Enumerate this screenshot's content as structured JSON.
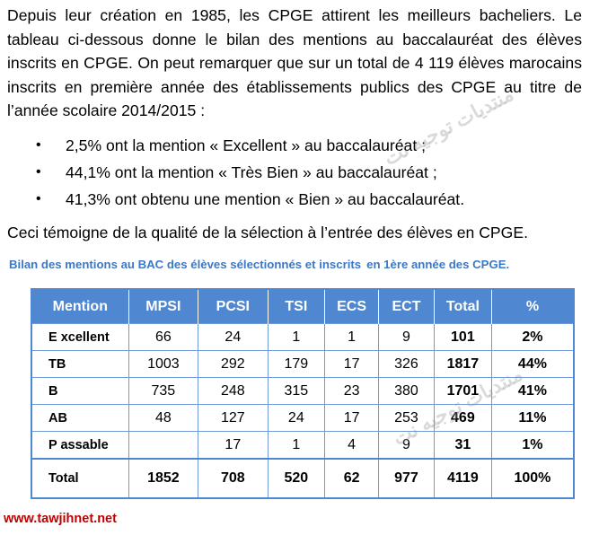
{
  "intro": "Depuis leur création en 1985, les CPGE attirent les meilleurs bacheliers. Le tableau ci-dessous donne le bilan des mentions au baccalauréat des élèves inscrits en CPGE. On peut remarquer que sur un total de 4 119 élèves marocains inscrits en première année des établissements publics des CPGE au titre de l’année scolaire 2014/2015 :",
  "bullets": [
    "2,5% ont la mention « Excellent » au baccalauréat ;",
    "44,1% ont la mention « Très Bien » au baccalauréat ;",
    "41,3% ont obtenu une mention « Bien » au baccalauréat."
  ],
  "bullet_symbol": "•",
  "conclusion": "Ceci témoigne de la qualité de la sélection à l’entrée des élèves en CPGE.",
  "caption_part1": "Bilan des mentions au BAC des élèves sélectionnés et inscrits",
  "caption_part2": "en 1ère année des CPGE.",
  "table": {
    "headers": [
      "Mention",
      "MPSI",
      "PCSI",
      "TSI",
      "ECS",
      "ECT",
      "Total",
      "%"
    ],
    "rows": [
      {
        "label": "E xcellent",
        "mpsi": "66",
        "pcsi": "24",
        "tsi": "1",
        "ecs": "1",
        "ect": "9",
        "total": "101",
        "pct": "2%"
      },
      {
        "label": "TB",
        "mpsi": "1003",
        "pcsi": "292",
        "tsi": "179",
        "ecs": "17",
        "ect": "326",
        "total": "1817",
        "pct": "44%"
      },
      {
        "label": "B",
        "mpsi": "735",
        "pcsi": "248",
        "tsi": "315",
        "ecs": "23",
        "ect": "380",
        "total": "1701",
        "pct": "41%"
      },
      {
        "label": "AB",
        "mpsi": "48",
        "pcsi": "127",
        "tsi": "24",
        "ecs": "17",
        "ect": "253",
        "total": "469",
        "pct": "11%"
      },
      {
        "label": "P assable",
        "mpsi": "",
        "pcsi": "17",
        "tsi": "1",
        "ecs": "4",
        "ect": "9",
        "total": "31",
        "pct": "1%"
      }
    ],
    "total_row": {
      "label": "Total",
      "mpsi": "1852",
      "pcsi": "708",
      "tsi": "520",
      "ecs": "62",
      "ect": "977",
      "total": "4119",
      "pct": "100%"
    }
  },
  "website": "www.tawjihnet.net",
  "watermark": "منتديات توجيه نت",
  "colors": {
    "header_blue": "#4f87d0",
    "caption_blue": "#3a78c9",
    "site_red": "#c00000"
  }
}
